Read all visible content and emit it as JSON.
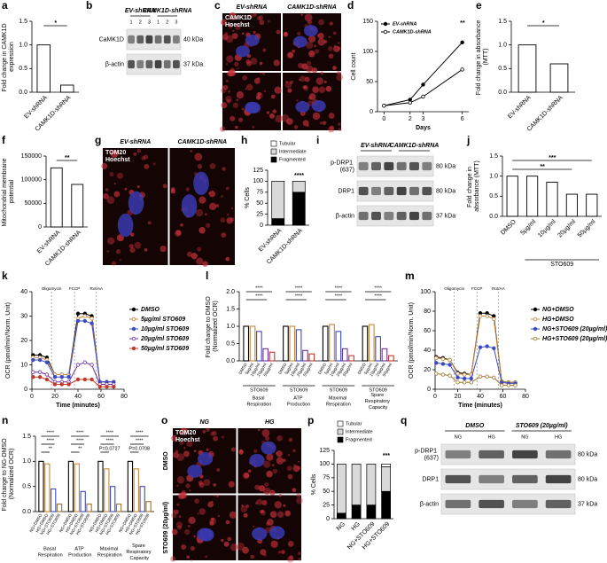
{
  "panels": [
    {
      "letter": "a",
      "type": "bar",
      "ylabel": "Fold change in CAMK1D expression",
      "categories": [
        "EV-shRNA",
        "CAMK1D-shRNA"
      ],
      "values": [
        1.0,
        0.15
      ],
      "color": "#ffffff",
      "ylim": [
        0,
        1.5
      ],
      "yticks": [
        {
          "value": 0,
          "label": "0.0"
        },
        0.5,
        {
          "value": 1,
          "label": "1.0"
        },
        1.5
      ],
      "annotations": [
        "*"
      ]
    },
    {
      "letter": "b",
      "type": "blot",
      "headers": [
        "EV-shRNA",
        "CAMK1D-shRNA"
      ],
      "lanes": [
        "1",
        "2",
        "3",
        "1",
        "2",
        "3"
      ],
      "rows": [
        {
          "label": "CaMK1D",
          "kda": "40 kDa"
        },
        {
          "label": "β-actin",
          "kda": "37 kDa"
        }
      ]
    },
    {
      "letter": "c",
      "type": "image",
      "columns": [
        "EV-shRNA",
        "CAMK1D-shRNA"
      ],
      "overlay": [
        "CAMK1D",
        "Hoechst"
      ]
    },
    {
      "letter": "d",
      "type": "line",
      "xlabel": "Days",
      "ylabel": "Cell count",
      "x": [
        0,
        2,
        3,
        6
      ],
      "xlim": [
        -0.5,
        6.5
      ],
      "xticks": [
        0,
        2,
        3,
        6
      ],
      "ylim": [
        0,
        150
      ],
      "yticks": [
        0,
        50,
        100,
        150
      ],
      "legend": "upper left",
      "series": [
        {
          "name": "EV-shRNA",
          "color": "#000000",
          "values": [
            10,
            20,
            45,
            115
          ]
        },
        {
          "name": "CAMK1D-shRNA",
          "color": "#000000",
          "values": [
            10,
            15,
            25,
            70
          ]
        }
      ],
      "annotations": [
        "**"
      ]
    },
    {
      "letter": "e",
      "type": "bar",
      "ylabel": "Fold change in absorbance (MTT)",
      "categories": [
        "EV-shRNA",
        "CAMK1D-shRNA"
      ],
      "values": [
        1.0,
        0.6
      ],
      "color": "#ffffff",
      "ylim": [
        0,
        1.5
      ],
      "yticks": [
        {
          "value": 0,
          "label": "0.0"
        },
        0.5,
        {
          "value": 1,
          "label": "1.0"
        },
        1.5
      ],
      "annotations": [
        "*"
      ]
    },
    {
      "letter": "f",
      "type": "bar",
      "ylabel": "Mitochondrial membrane potential",
      "categories": [
        "EV-shRNA",
        "CAMK1D-shRNA"
      ],
      "values": [
        125000,
        90000
      ],
      "color": "#ffffff",
      "ylim": [
        0,
        150000
      ],
      "yticks": [
        0,
        50000,
        100000,
        150000
      ],
      "annotations": [
        "**"
      ]
    },
    {
      "letter": "g",
      "type": "image",
      "columns": [
        "EV-shRNA",
        "CAMK1D-shRNA"
      ],
      "overlay": [
        "TOM20",
        "Hoechst"
      ]
    },
    {
      "letter": "h",
      "type": "stacked",
      "ylabel": "% Cells",
      "categories": [
        "EV-shRNA",
        "CAMK1D-shRNA"
      ],
      "ylim": [
        0,
        125
      ],
      "yticks": [
        0,
        25,
        50,
        75,
        100,
        125
      ],
      "series": [
        {
          "name": "Tubular",
          "color": "#ffffff",
          "values": [
            0,
            0
          ]
        },
        {
          "name": "Intermediate",
          "color": "#d9d9d9",
          "values": [
            85,
            25
          ]
        },
        {
          "name": "Fragmented",
          "color": "#000000",
          "values": [
            15,
            75
          ]
        }
      ],
      "annotations": [
        "****"
      ]
    },
    {
      "letter": "i",
      "type": "blot",
      "headers": [
        "EV-shRNA",
        "CAMK1D-shRNA"
      ],
      "rows": [
        {
          "label": "p-DRP1 (637)",
          "kda": "80 kDa"
        },
        {
          "label": "DRP1",
          "kda": "80 kDa"
        },
        {
          "label": "β-actin",
          "kda": "37 kDa"
        }
      ]
    },
    {
      "letter": "j",
      "type": "bar",
      "ylabel": "Fold change in absorbance (MTT)",
      "xlabel": "STO609",
      "categories": [
        "DMSO",
        "5µg/ml",
        "10µg/ml",
        "20µg/ml",
        "50µg/ml"
      ],
      "values": [
        1.0,
        1.0,
        0.85,
        0.55,
        0.55
      ],
      "color": "#ffffff",
      "ylim": [
        0,
        1.5
      ],
      "yticks": [
        {
          "value": 0,
          "label": "0.0"
        },
        0.5,
        {
          "value": 1,
          "label": "1.0"
        },
        1.5
      ],
      "annotations": [
        "***",
        "**"
      ]
    },
    {
      "letter": "k",
      "type": "line",
      "xlabel": "Time (minutes)",
      "ylabel": "OCR (pmol/min/Norm. Unit)",
      "x": [
        1,
        7,
        13,
        20,
        26,
        32,
        40,
        46,
        52,
        59,
        65,
        71
      ],
      "xlim": [
        0,
        80
      ],
      "xticks": [
        0,
        20,
        40,
        60,
        80
      ],
      "ylim": [
        0,
        40
      ],
      "yticks": [
        0,
        10,
        20,
        30,
        40
      ],
      "legend": "right",
      "events": [
        {
          "label": "Oligomycin",
          "x": 17
        },
        {
          "label": "FCCP",
          "x": 37
        },
        {
          "label": "Rot/AA",
          "x": 56
        }
      ],
      "series": [
        {
          "name": "DMSO",
          "color": "#000000",
          "values": [
            14,
            14,
            13,
            6,
            6,
            6,
            31,
            31,
            30,
            3,
            3,
            3
          ]
        },
        {
          "name": "5µg/ml STO609",
          "color": "#c8873a",
          "values": [
            13,
            13,
            12,
            6,
            6,
            6,
            29,
            30,
            29,
            3,
            3,
            3
          ]
        },
        {
          "name": "10µg/ml STO609",
          "color": "#3b4cc0",
          "values": [
            12,
            12,
            11,
            5,
            5,
            5,
            28,
            28,
            27,
            3,
            3,
            3
          ]
        },
        {
          "name": "20µg/ml STO609",
          "color": "#7030a0",
          "values": [
            7,
            7,
            6,
            3,
            3,
            3,
            10,
            11,
            10,
            2,
            2,
            2
          ]
        },
        {
          "name": "50µg/ml STO609",
          "color": "#c0392b",
          "values": [
            5,
            5,
            4,
            2,
            2,
            2,
            4,
            4,
            4,
            1,
            1,
            1
          ]
        }
      ]
    },
    {
      "letter": "l",
      "type": "grouped",
      "ylabel": "Fold change to DMSO (Normalized OCR)",
      "group_label": "STO609",
      "categories": [
        "Basal Respiration",
        "ATP Production",
        "Maximal Respiration",
        "Spare Respiratory Capacity"
      ],
      "ylim": [
        0,
        2
      ],
      "yticks": [
        {
          "value": 0,
          "label": "0.0"
        },
        0.5,
        {
          "value": 1,
          "label": "1.0"
        },
        1.5,
        {
          "value": 2,
          "label": "2.0"
        }
      ],
      "series": [
        {
          "name": "DMSO",
          "color": "#000000",
          "values": [
            1.0,
            1.0,
            1.0,
            1.0
          ]
        },
        {
          "name": "5µg/ml",
          "color": "#c8873a",
          "values": [
            1.0,
            1.0,
            1.05,
            1.05
          ]
        },
        {
          "name": "10µg/ml",
          "color": "#3b4cc0",
          "values": [
            0.85,
            0.9,
            0.85,
            0.7
          ]
        },
        {
          "name": "20µg/ml",
          "color": "#7030a0",
          "values": [
            0.35,
            0.3,
            0.35,
            0.35
          ]
        },
        {
          "name": "50µg/ml",
          "color": "#c0392b",
          "values": [
            0.25,
            0.2,
            0.15,
            0.15
          ]
        }
      ],
      "annotations": [
        "****",
        "****",
        "****",
        "****",
        "****",
        "****",
        "****",
        "****"
      ]
    },
    {
      "letter": "m",
      "type": "line",
      "xlabel": "Time (minutes)",
      "ylabel": "OCR (pmol/min/Norm. Unit)",
      "x": [
        1,
        7,
        13,
        20,
        26,
        32,
        40,
        46,
        52,
        59,
        65,
        71
      ],
      "xlim": [
        0,
        80
      ],
      "xticks": [
        0,
        20,
        40,
        60,
        80
      ],
      "ylim": [
        0,
        100
      ],
      "yticks": [
        0,
        20,
        40,
        60,
        80,
        100
      ],
      "legend": "right",
      "events": [
        {
          "label": "Oligomycin",
          "x": 17
        },
        {
          "label": "FCCP",
          "x": 37
        },
        {
          "label": "Rot/AA",
          "x": 56
        }
      ],
      "series": [
        {
          "name": "NG+DMSO",
          "color": "#000000",
          "values": [
            33,
            32,
            30,
            17,
            16,
            15,
            78,
            78,
            75,
            8,
            7,
            7
          ]
        },
        {
          "name": "HG+DMSO",
          "color": "#c8873a",
          "values": [
            32,
            31,
            30,
            16,
            15,
            15,
            75,
            75,
            72,
            8,
            7,
            7
          ]
        },
        {
          "name": "NG+STO609 (20µg/ml)",
          "color": "#3b4cc0",
          "values": [
            27,
            26,
            25,
            12,
            11,
            11,
            43,
            44,
            42,
            7,
            6,
            6
          ]
        },
        {
          "name": "HG+STO609 (20µg/ml)",
          "color": "#a0742c",
          "values": [
            16,
            15,
            14,
            7,
            7,
            7,
            13,
            13,
            12,
            4,
            4,
            4
          ]
        }
      ]
    },
    {
      "letter": "n",
      "type": "grouped",
      "ylabel": "Fold change to NG-DMSO (Normalized OCR)",
      "categories": [
        "Basal Respiration",
        "ATP Production",
        "Maximal Respiration",
        "Spare Respiratory Capacity"
      ],
      "ylim": [
        0,
        1.5
      ],
      "yticks": [
        {
          "value": 0,
          "label": "0.0"
        },
        0.5,
        {
          "value": 1,
          "label": "1.0"
        },
        1.5
      ],
      "series": [
        {
          "name": "NG+DMSO",
          "color": "#000000",
          "values": [
            1.0,
            1.0,
            1.0,
            1.0
          ]
        },
        {
          "name": "HG+DMSO",
          "color": "#c8873a",
          "values": [
            0.95,
            0.95,
            0.85,
            0.85
          ]
        },
        {
          "name": "NG+STO609",
          "color": "#3b4cc0",
          "values": [
            0.45,
            0.4,
            0.5,
            0.5
          ]
        },
        {
          "name": "HG+STO609",
          "color": "#a0742c",
          "values": [
            0.15,
            0.15,
            0.15,
            0.2
          ]
        }
      ],
      "annotations": [
        "****",
        "****",
        "**",
        "****",
        "****",
        "**",
        "****",
        "****",
        "P=0.0727",
        "****",
        "****",
        "P=0.0708"
      ]
    },
    {
      "letter": "o",
      "type": "image",
      "columns": [
        "NG",
        "HG"
      ],
      "rows": [
        "DMSO",
        "STO609 (20µg/ml)"
      ],
      "overlay": [
        "TOM20",
        "Hoechst"
      ]
    },
    {
      "letter": "p",
      "type": "stacked",
      "ylabel": "% Cells",
      "categories": [
        "NG",
        "HG",
        "NG+STO609",
        "HG+STO609"
      ],
      "ylim": [
        0,
        125
      ],
      "yticks": [
        0,
        25,
        50,
        75,
        100,
        125
      ],
      "series": [
        {
          "name": "Tubular",
          "color": "#ffffff",
          "values": [
            0,
            0,
            0,
            5
          ]
        },
        {
          "name": "Intermediate",
          "color": "#d9d9d9",
          "values": [
            90,
            75,
            75,
            45
          ]
        },
        {
          "name": "Fragmented",
          "color": "#000000",
          "values": [
            10,
            25,
            25,
            50
          ]
        }
      ],
      "annotations": [
        "***"
      ]
    },
    {
      "letter": "q",
      "type": "blot",
      "headers": [
        "DMSO",
        "STO609 (20µg/ml)"
      ],
      "lanes": [
        "NG",
        "HG",
        "NG",
        "HG"
      ],
      "rows": [
        {
          "label": "p-DRP1 (637)",
          "kda": "80 kDa"
        },
        {
          "label": "DRP1",
          "kda": "80 kDa"
        },
        {
          "label": "β-actin",
          "kda": "37 kDa"
        }
      ]
    }
  ]
}
